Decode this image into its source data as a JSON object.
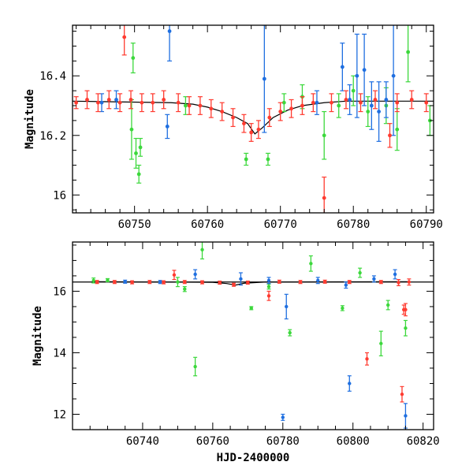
{
  "figure": {
    "background": "#ffffff"
  },
  "chart_data": [
    {
      "type": "scatter",
      "panel": "top",
      "title": "",
      "xlabel": "",
      "ylabel": "Magnitude",
      "xlim": [
        60741.5,
        60791
      ],
      "ylim": [
        16.57,
        15.94
      ],
      "y_inverted": true,
      "grid": false,
      "legend": "none",
      "x_ticks": [
        60750,
        60760,
        60770,
        60780,
        60790
      ],
      "x_tick_labels": [
        "60750",
        "60760",
        "60770",
        "60780",
        "60790"
      ],
      "y_ticks": [
        16.0,
        16.2,
        16.4
      ],
      "y_tick_labels": [
        "16",
        "16.2",
        "16.4"
      ],
      "model_curve": {
        "x": [
          60741.5,
          60755,
          60758,
          60760,
          60762,
          60764,
          60765.5,
          60766.5,
          60767.5,
          60769,
          60771,
          60773,
          60776,
          60779,
          60783,
          60791
        ],
        "y": [
          16.315,
          16.31,
          16.305,
          16.295,
          16.28,
          16.26,
          16.24,
          16.205,
          16.225,
          16.26,
          16.285,
          16.3,
          16.31,
          16.315,
          16.315,
          16.315
        ]
      },
      "series": [
        {
          "color": "#ff3b30",
          "points": [
            {
              "x": 60742.0,
              "y": 16.31,
              "err": 0.02
            },
            {
              "x": 60743.5,
              "y": 16.32,
              "err": 0.03
            },
            {
              "x": 60745.0,
              "y": 16.31,
              "err": 0.03
            },
            {
              "x": 60746.5,
              "y": 16.32,
              "err": 0.03
            },
            {
              "x": 60748.0,
              "y": 16.31,
              "err": 0.03
            },
            {
              "x": 60748.6,
              "y": 16.53,
              "err": 0.06
            },
            {
              "x": 60749.5,
              "y": 16.32,
              "err": 0.03
            },
            {
              "x": 60751.0,
              "y": 16.31,
              "err": 0.03
            },
            {
              "x": 60752.5,
              "y": 16.31,
              "err": 0.03
            },
            {
              "x": 60754.0,
              "y": 16.32,
              "err": 0.03
            },
            {
              "x": 60756.0,
              "y": 16.31,
              "err": 0.03
            },
            {
              "x": 60757.5,
              "y": 16.3,
              "err": 0.03
            },
            {
              "x": 60759.0,
              "y": 16.3,
              "err": 0.03
            },
            {
              "x": 60760.5,
              "y": 16.29,
              "err": 0.03
            },
            {
              "x": 60762.0,
              "y": 16.28,
              "err": 0.03
            },
            {
              "x": 60763.5,
              "y": 16.26,
              "err": 0.03
            },
            {
              "x": 60765.0,
              "y": 16.24,
              "err": 0.03
            },
            {
              "x": 60766.0,
              "y": 16.21,
              "err": 0.03
            },
            {
              "x": 60767.0,
              "y": 16.22,
              "err": 0.03
            },
            {
              "x": 60768.5,
              "y": 16.26,
              "err": 0.03
            },
            {
              "x": 60770.0,
              "y": 16.28,
              "err": 0.03
            },
            {
              "x": 60771.5,
              "y": 16.29,
              "err": 0.03
            },
            {
              "x": 60773.0,
              "y": 16.3,
              "err": 0.03
            },
            {
              "x": 60774.5,
              "y": 16.31,
              "err": 0.03
            },
            {
              "x": 60776.0,
              "y": 15.99,
              "err": 0.07
            },
            {
              "x": 60777.0,
              "y": 16.31,
              "err": 0.03
            },
            {
              "x": 60779.0,
              "y": 16.32,
              "err": 0.03
            },
            {
              "x": 60781.0,
              "y": 16.31,
              "err": 0.03
            },
            {
              "x": 60783.0,
              "y": 16.32,
              "err": 0.03
            },
            {
              "x": 60785.0,
              "y": 16.2,
              "err": 0.04
            },
            {
              "x": 60786.0,
              "y": 16.31,
              "err": 0.03
            },
            {
              "x": 60788.0,
              "y": 16.32,
              "err": 0.03
            },
            {
              "x": 60790.0,
              "y": 16.31,
              "err": 0.03
            }
          ]
        },
        {
          "color": "#3cd83c",
          "points": [
            {
              "x": 60749.6,
              "y": 16.22,
              "err": 0.1
            },
            {
              "x": 60749.8,
              "y": 16.46,
              "err": 0.05
            },
            {
              "x": 60750.2,
              "y": 16.14,
              "err": 0.05
            },
            {
              "x": 60750.6,
              "y": 16.07,
              "err": 0.03
            },
            {
              "x": 60750.8,
              "y": 16.16,
              "err": 0.03
            },
            {
              "x": 60757.0,
              "y": 16.3,
              "err": 0.03
            },
            {
              "x": 60765.3,
              "y": 16.12,
              "err": 0.02
            },
            {
              "x": 60768.3,
              "y": 16.12,
              "err": 0.02
            },
            {
              "x": 60770.5,
              "y": 16.31,
              "err": 0.03
            },
            {
              "x": 60773.0,
              "y": 16.33,
              "err": 0.04
            },
            {
              "x": 60776.0,
              "y": 16.2,
              "err": 0.08
            },
            {
              "x": 60778.0,
              "y": 16.3,
              "err": 0.04
            },
            {
              "x": 60780.0,
              "y": 16.35,
              "err": 0.05
            },
            {
              "x": 60782.0,
              "y": 16.28,
              "err": 0.05
            },
            {
              "x": 60784.5,
              "y": 16.3,
              "err": 0.06
            },
            {
              "x": 60786.0,
              "y": 16.22,
              "err": 0.07
            },
            {
              "x": 60787.5,
              "y": 16.48,
              "err": 0.1
            },
            {
              "x": 60790.5,
              "y": 16.25,
              "err": 0.05
            }
          ]
        },
        {
          "color": "#1f6fe0",
          "points": [
            {
              "x": 60745.5,
              "y": 16.31,
              "err": 0.03
            },
            {
              "x": 60747.5,
              "y": 16.32,
              "err": 0.03
            },
            {
              "x": 60754.5,
              "y": 16.23,
              "err": 0.04
            },
            {
              "x": 60754.8,
              "y": 16.55,
              "err": 0.1
            },
            {
              "x": 60767.8,
              "y": 16.39,
              "err": 0.18
            },
            {
              "x": 60775.0,
              "y": 16.31,
              "err": 0.04
            },
            {
              "x": 60778.5,
              "y": 16.43,
              "err": 0.08
            },
            {
              "x": 60779.5,
              "y": 16.32,
              "err": 0.05
            },
            {
              "x": 60780.5,
              "y": 16.4,
              "err": 0.14
            },
            {
              "x": 60781.5,
              "y": 16.42,
              "err": 0.12
            },
            {
              "x": 60782.5,
              "y": 16.3,
              "err": 0.08
            },
            {
              "x": 60783.5,
              "y": 16.28,
              "err": 0.1
            },
            {
              "x": 60784.5,
              "y": 16.32,
              "err": 0.06
            },
            {
              "x": 60785.5,
              "y": 16.4,
              "err": 0.2
            }
          ]
        }
      ]
    },
    {
      "type": "scatter",
      "panel": "bottom",
      "title": "",
      "xlabel": "HJD-2400000",
      "ylabel": "Magnitude",
      "xlim": [
        60720,
        60823
      ],
      "ylim": [
        17.6,
        11.5
      ],
      "y_inverted": true,
      "grid": false,
      "legend": "none",
      "x_ticks": [
        60740,
        60760,
        60780,
        60800,
        60820
      ],
      "x_tick_labels": [
        "60740",
        "60760",
        "60780",
        "60800",
        "60820"
      ],
      "y_ticks": [
        12,
        14,
        16
      ],
      "y_tick_labels": [
        "12",
        "14",
        "16"
      ],
      "reference_line": {
        "y": 16.3
      },
      "model_curve": {
        "x": [
          60726,
          60760,
          60764,
          60766.5,
          60769,
          60775,
          60816
        ],
        "y": [
          16.31,
          16.29,
          16.25,
          16.2,
          16.26,
          16.3,
          16.31
        ]
      },
      "series": [
        {
          "color": "#ff3b30",
          "points": [
            {
              "x": 60727,
              "y": 16.3,
              "err": 0.05
            },
            {
              "x": 60732,
              "y": 16.3,
              "err": 0.05
            },
            {
              "x": 60737,
              "y": 16.29,
              "err": 0.05
            },
            {
              "x": 60742,
              "y": 16.3,
              "err": 0.05
            },
            {
              "x": 60746,
              "y": 16.29,
              "err": 0.05
            },
            {
              "x": 60749,
              "y": 16.53,
              "err": 0.15
            },
            {
              "x": 60752,
              "y": 16.3,
              "err": 0.05
            },
            {
              "x": 60757,
              "y": 16.29,
              "err": 0.05
            },
            {
              "x": 60762,
              "y": 16.28,
              "err": 0.05
            },
            {
              "x": 60766,
              "y": 16.21,
              "err": 0.05
            },
            {
              "x": 60770,
              "y": 16.28,
              "err": 0.05
            },
            {
              "x": 60776,
              "y": 15.85,
              "err": 0.15
            },
            {
              "x": 60779,
              "y": 16.31,
              "err": 0.05
            },
            {
              "x": 60785,
              "y": 16.3,
              "err": 0.05
            },
            {
              "x": 60792,
              "y": 16.31,
              "err": 0.05
            },
            {
              "x": 60799,
              "y": 16.3,
              "err": 0.05
            },
            {
              "x": 60804,
              "y": 13.8,
              "err": 0.2
            },
            {
              "x": 60808,
              "y": 16.3,
              "err": 0.05
            },
            {
              "x": 60813,
              "y": 16.28,
              "err": 0.1
            },
            {
              "x": 60814,
              "y": 12.65,
              "err": 0.25
            },
            {
              "x": 60814.5,
              "y": 15.4,
              "err": 0.15
            },
            {
              "x": 60815,
              "y": 15.4,
              "err": 0.2
            },
            {
              "x": 60816,
              "y": 16.3,
              "err": 0.1
            }
          ]
        },
        {
          "color": "#3cd83c",
          "points": [
            {
              "x": 60726,
              "y": 16.35,
              "err": 0.08
            },
            {
              "x": 60730,
              "y": 16.36,
              "err": 0.05
            },
            {
              "x": 60750,
              "y": 16.3,
              "err": 0.15
            },
            {
              "x": 60752,
              "y": 16.07,
              "err": 0.08
            },
            {
              "x": 60755,
              "y": 13.55,
              "err": 0.3
            },
            {
              "x": 60757,
              "y": 17.35,
              "err": 0.3
            },
            {
              "x": 60771,
              "y": 15.45,
              "err": 0.05
            },
            {
              "x": 60776,
              "y": 16.15,
              "err": 0.08
            },
            {
              "x": 60782,
              "y": 14.65,
              "err": 0.1
            },
            {
              "x": 60788,
              "y": 16.9,
              "err": 0.25
            },
            {
              "x": 60797,
              "y": 15.45,
              "err": 0.08
            },
            {
              "x": 60802,
              "y": 16.6,
              "err": 0.15
            },
            {
              "x": 60808,
              "y": 14.3,
              "err": 0.4
            },
            {
              "x": 60810,
              "y": 15.55,
              "err": 0.15
            },
            {
              "x": 60815,
              "y": 14.8,
              "err": 0.25
            }
          ]
        },
        {
          "color": "#1f6fe0",
          "points": [
            {
              "x": 60735,
              "y": 16.31,
              "err": 0.05
            },
            {
              "x": 60745,
              "y": 16.3,
              "err": 0.05
            },
            {
              "x": 60755,
              "y": 16.55,
              "err": 0.15
            },
            {
              "x": 60768,
              "y": 16.4,
              "err": 0.2
            },
            {
              "x": 60776,
              "y": 16.35,
              "err": 0.1
            },
            {
              "x": 60780,
              "y": 11.9,
              "err": 0.1
            },
            {
              "x": 60781,
              "y": 15.5,
              "err": 0.4
            },
            {
              "x": 60790,
              "y": 16.35,
              "err": 0.1
            },
            {
              "x": 60798,
              "y": 16.2,
              "err": 0.1
            },
            {
              "x": 60799,
              "y": 13.0,
              "err": 0.25
            },
            {
              "x": 60806,
              "y": 16.4,
              "err": 0.1
            },
            {
              "x": 60812,
              "y": 16.55,
              "err": 0.15
            },
            {
              "x": 60815,
              "y": 11.95,
              "err": 0.4
            }
          ]
        }
      ]
    }
  ]
}
